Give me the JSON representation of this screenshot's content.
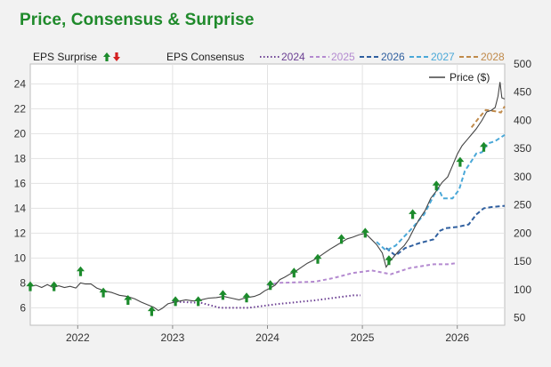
{
  "title": "Price, Consensus & Surprise",
  "legend": {
    "surprise_label": "EPS Surprise",
    "consensus_label": "EPS Consensus",
    "price_label": "Price ($)",
    "years": [
      {
        "label": "2024",
        "color": "#6b3f93",
        "dash": "1.5,2.5"
      },
      {
        "label": "2025",
        "color": "#b48ad0",
        "dash": "4,3"
      },
      {
        "label": "2026",
        "color": "#2f5f9f",
        "dash": "5,3"
      },
      {
        "label": "2027",
        "color": "#4aa8d8",
        "dash": "5,3"
      },
      {
        "label": "2028",
        "color": "#c08a4a",
        "dash": "5,3"
      }
    ]
  },
  "chart_data": {
    "type": "line",
    "x_ticks": [
      "2022",
      "2023",
      "2024",
      "2025",
      "2026"
    ],
    "y_left": {
      "ticks": [
        6,
        8,
        10,
        12,
        14,
        16,
        18,
        20,
        22,
        24
      ],
      "range": [
        4.6,
        25.6
      ]
    },
    "y_right": {
      "ticks": [
        50,
        100,
        150,
        200,
        250,
        300,
        350,
        400,
        450,
        500
      ],
      "range": [
        37,
        500
      ]
    },
    "x_range": [
      2021.5,
      2026.5
    ],
    "price": {
      "name": "Price ($)",
      "axis": "right",
      "points": [
        [
          2021.5,
          106
        ],
        [
          2021.56,
          108
        ],
        [
          2021.62,
          104
        ],
        [
          2021.68,
          109
        ],
        [
          2021.74,
          104
        ],
        [
          2021.8,
          107
        ],
        [
          2021.86,
          104
        ],
        [
          2021.92,
          106
        ],
        [
          2021.98,
          103
        ],
        [
          2022.03,
          112
        ],
        [
          2022.08,
          110
        ],
        [
          2022.14,
          110
        ],
        [
          2022.2,
          103
        ],
        [
          2022.28,
          98
        ],
        [
          2022.36,
          95
        ],
        [
          2022.44,
          90
        ],
        [
          2022.52,
          88
        ],
        [
          2022.6,
          84
        ],
        [
          2022.67,
          78
        ],
        [
          2022.74,
          73
        ],
        [
          2022.8,
          69
        ],
        [
          2022.85,
          63
        ],
        [
          2022.89,
          67
        ],
        [
          2022.95,
          75
        ],
        [
          2023.02,
          78
        ],
        [
          2023.08,
          80
        ],
        [
          2023.14,
          82
        ],
        [
          2023.22,
          80
        ],
        [
          2023.3,
          82
        ],
        [
          2023.38,
          85
        ],
        [
          2023.46,
          86
        ],
        [
          2023.54,
          88
        ],
        [
          2023.62,
          85
        ],
        [
          2023.7,
          82
        ],
        [
          2023.78,
          86
        ],
        [
          2023.86,
          88
        ],
        [
          2023.92,
          92
        ],
        [
          2023.97,
          98
        ],
        [
          2024.03,
          103
        ],
        [
          2024.08,
          108
        ],
        [
          2024.13,
          118
        ],
        [
          2024.18,
          122
        ],
        [
          2024.24,
          128
        ],
        [
          2024.3,
          133
        ],
        [
          2024.36,
          140
        ],
        [
          2024.42,
          147
        ],
        [
          2024.48,
          152
        ],
        [
          2024.54,
          158
        ],
        [
          2024.6,
          165
        ],
        [
          2024.66,
          172
        ],
        [
          2024.72,
          178
        ],
        [
          2024.78,
          184
        ],
        [
          2024.84,
          190
        ],
        [
          2024.9,
          193
        ],
        [
          2024.96,
          197
        ],
        [
          2025.03,
          200
        ],
        [
          2025.09,
          190
        ],
        [
          2025.15,
          180
        ],
        [
          2025.21,
          165
        ],
        [
          2025.25,
          140
        ],
        [
          2025.29,
          150
        ],
        [
          2025.34,
          160
        ],
        [
          2025.39,
          170
        ],
        [
          2025.44,
          178
        ],
        [
          2025.49,
          190
        ],
        [
          2025.55,
          210
        ],
        [
          2025.6,
          225
        ],
        [
          2025.66,
          240
        ],
        [
          2025.72,
          262
        ],
        [
          2025.78,
          275
        ],
        [
          2025.84,
          290
        ],
        [
          2025.9,
          300
        ],
        [
          2025.95,
          320
        ],
        [
          2026.0,
          340
        ],
        [
          2026.05,
          355
        ],
        [
          2026.1,
          365
        ],
        [
          2026.15,
          375
        ],
        [
          2026.2,
          385
        ],
        [
          2026.26,
          400
        ],
        [
          2026.31,
          415
        ],
        [
          2026.36,
          418
        ],
        [
          2026.4,
          423
        ],
        [
          2026.43,
          443
        ],
        [
          2026.45,
          468
        ],
        [
          2026.47,
          440
        ],
        [
          2026.5,
          438
        ]
      ]
    },
    "consensus": [
      {
        "name": "2024",
        "axis": "left",
        "points": [
          [
            2023.0,
            6.5
          ],
          [
            2023.3,
            6.4
          ],
          [
            2023.5,
            6.0
          ],
          [
            2023.8,
            6.0
          ],
          [
            2024.0,
            6.2
          ],
          [
            2024.1,
            6.3
          ],
          [
            2024.5,
            6.6
          ],
          [
            2024.7,
            6.8
          ],
          [
            2024.9,
            7.0
          ],
          [
            2024.98,
            7.0
          ]
        ]
      },
      {
        "name": "2025",
        "axis": "left",
        "points": [
          [
            2024.0,
            7.8
          ],
          [
            2024.1,
            8.0
          ],
          [
            2024.5,
            8.1
          ],
          [
            2024.7,
            8.4
          ],
          [
            2024.9,
            8.8
          ],
          [
            2025.1,
            9.0
          ],
          [
            2025.3,
            8.7
          ],
          [
            2025.5,
            9.2
          ],
          [
            2025.75,
            9.5
          ],
          [
            2025.9,
            9.5
          ],
          [
            2026.0,
            9.6
          ]
        ]
      },
      {
        "name": "2026",
        "axis": "left",
        "points": [
          [
            2025.25,
            10.8
          ],
          [
            2025.35,
            10.2
          ],
          [
            2025.45,
            10.8
          ],
          [
            2025.6,
            11.2
          ],
          [
            2025.75,
            11.5
          ],
          [
            2025.82,
            12.2
          ],
          [
            2025.88,
            12.4
          ],
          [
            2026.0,
            12.5
          ],
          [
            2026.12,
            12.7
          ],
          [
            2026.2,
            13.5
          ],
          [
            2026.28,
            14.0
          ],
          [
            2026.36,
            14.1
          ],
          [
            2026.5,
            14.2
          ]
        ]
      },
      {
        "name": "2027",
        "axis": "left",
        "points": [
          [
            2025.15,
            11.3
          ],
          [
            2025.25,
            10.6
          ],
          [
            2025.35,
            11.0
          ],
          [
            2025.5,
            12.2
          ],
          [
            2025.65,
            13.5
          ],
          [
            2025.75,
            15.0
          ],
          [
            2025.8,
            15.6
          ],
          [
            2025.85,
            14.8
          ],
          [
            2025.95,
            14.8
          ],
          [
            2026.02,
            15.5
          ],
          [
            2026.08,
            17.0
          ],
          [
            2026.15,
            17.8
          ],
          [
            2026.2,
            18.4
          ],
          [
            2026.26,
            18.5
          ],
          [
            2026.32,
            19.2
          ],
          [
            2026.4,
            19.4
          ],
          [
            2026.5,
            19.9
          ]
        ]
      },
      {
        "name": "2028",
        "axis": "left",
        "points": [
          [
            2026.15,
            20.5
          ],
          [
            2026.22,
            21.2
          ],
          [
            2026.3,
            21.9
          ],
          [
            2026.4,
            21.8
          ],
          [
            2026.46,
            21.7
          ],
          [
            2026.5,
            22.2
          ]
        ]
      }
    ],
    "surprises": {
      "axis": "left",
      "points": [
        [
          2021.5,
          7.7
        ],
        [
          2021.75,
          7.7
        ],
        [
          2022.03,
          8.9
        ],
        [
          2022.27,
          7.2
        ],
        [
          2022.53,
          6.6
        ],
        [
          2022.78,
          5.7
        ],
        [
          2023.03,
          6.5
        ],
        [
          2023.27,
          6.5
        ],
        [
          2023.53,
          7.0
        ],
        [
          2023.78,
          6.8
        ],
        [
          2024.03,
          7.8
        ],
        [
          2024.28,
          8.8
        ],
        [
          2024.53,
          9.9
        ],
        [
          2024.78,
          11.5
        ],
        [
          2025.03,
          12.0
        ],
        [
          2025.28,
          9.8
        ],
        [
          2025.53,
          13.5
        ],
        [
          2025.78,
          15.8
        ],
        [
          2026.03,
          17.7
        ],
        [
          2026.28,
          18.9
        ]
      ]
    }
  }
}
